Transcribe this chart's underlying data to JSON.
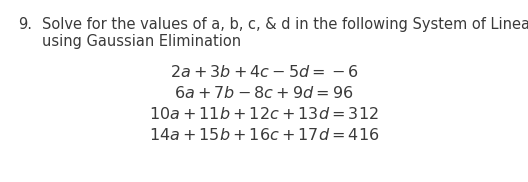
{
  "background_color": "#ffffff",
  "problem_number": "9.",
  "line1_plain": "Solve for the values of a, b, c, & d in the following System of Linear Equations",
  "line2_plain": "using Gaussian Elimination",
  "eq1": "$2a + 3b + 4c - 5d = -6$",
  "eq2": "$6a + 7b - 8c + 9d = 96$",
  "eq3": "$10a + 11b + 12c + 13d = 312$",
  "eq4": "$14a + 15b + 16c + 17d = 416$",
  "text_color": "#3a3a3a",
  "fontsize_header": 10.5,
  "fontsize_eq": 11.5,
  "figsize": [
    5.28,
    1.82
  ],
  "dpi": 100
}
